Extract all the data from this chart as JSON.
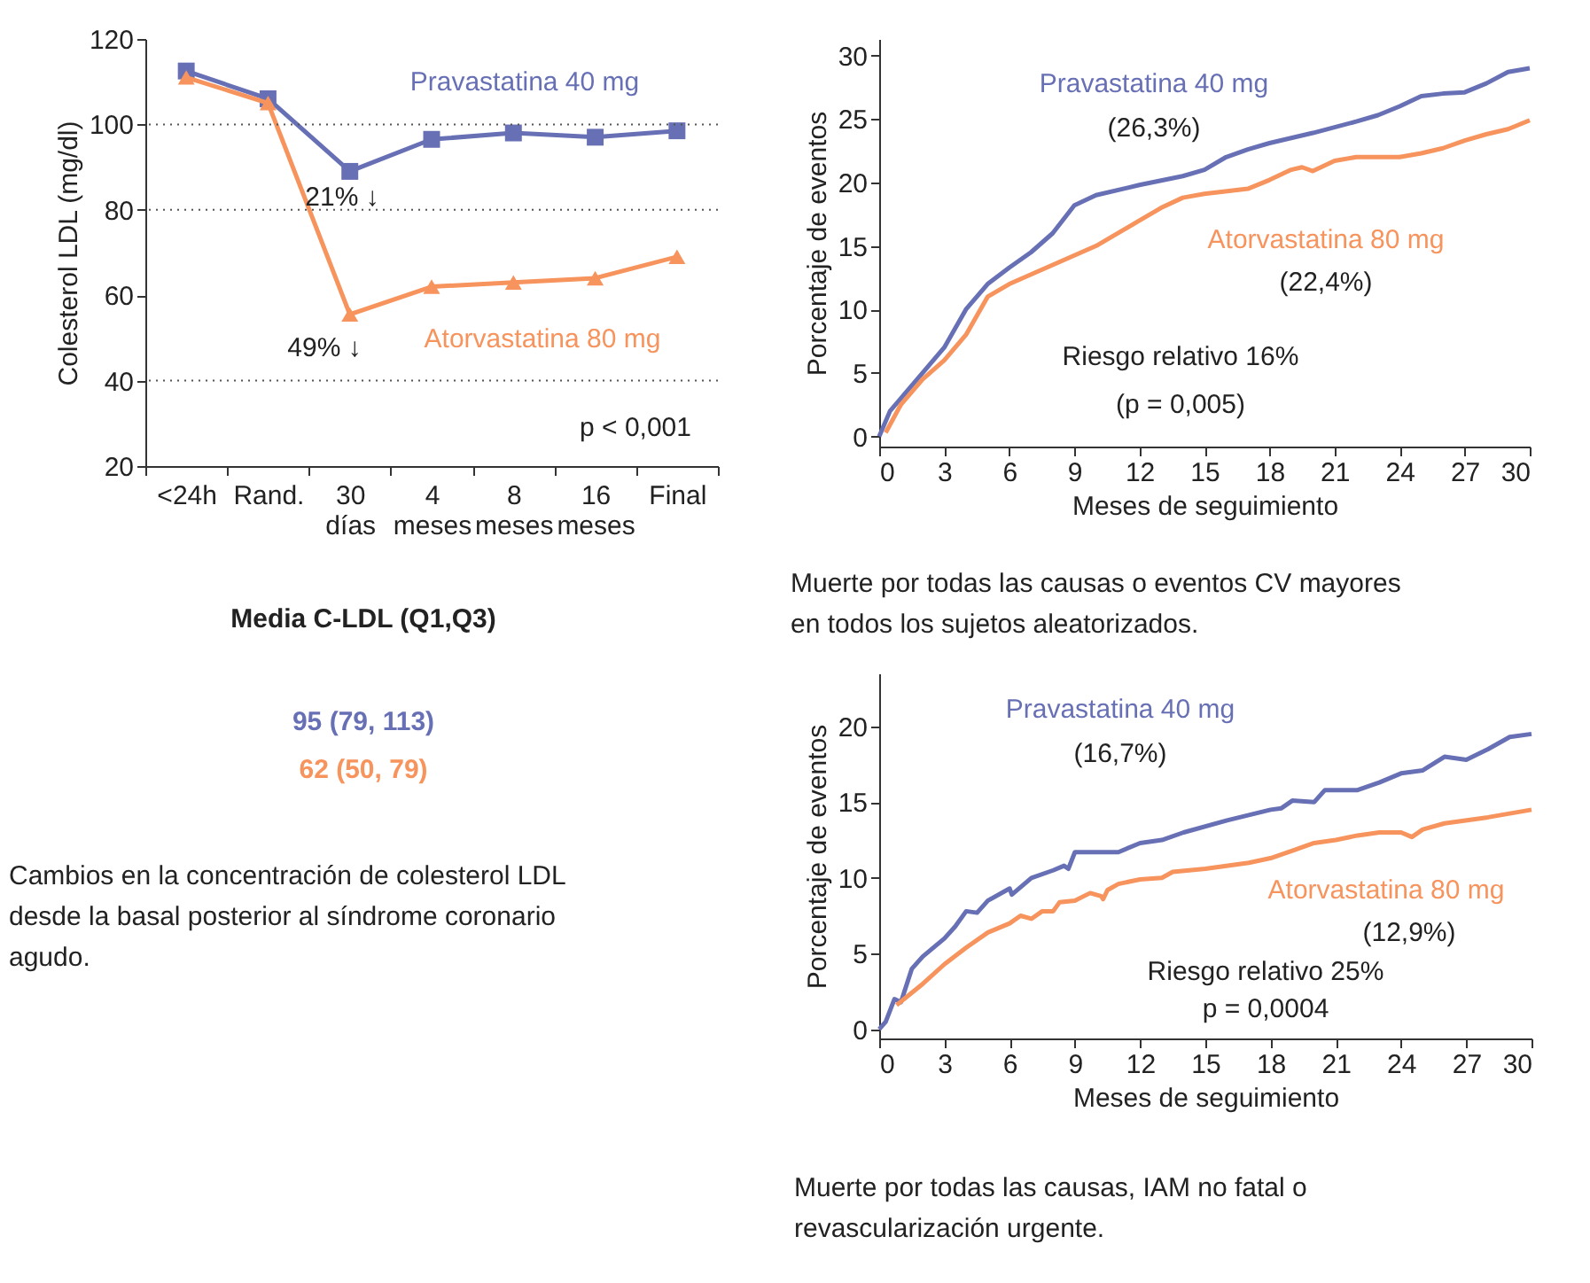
{
  "chart_data": [
    {
      "type": "line",
      "ylabel": "Colesterol LDL (mg/dl)",
      "categories": [
        "<24h",
        "Rand.",
        "30 días",
        "4 meses",
        "8 meses",
        "16 meses",
        "Final"
      ],
      "ylim": [
        20,
        120
      ],
      "yticks": [
        20,
        40,
        60,
        80,
        100,
        120
      ],
      "series": [
        {
          "name": "Pravastatina 40 mg",
          "color": "#6870b5",
          "marker": "square",
          "values": [
            112.5,
            106,
            89,
            96.5,
            98,
            97,
            98.5
          ]
        },
        {
          "name": "Atorvastatina 80 mg",
          "color": "#f7935c",
          "marker": "triangle",
          "values": [
            111,
            105,
            55.5,
            62,
            63,
            64,
            69
          ]
        }
      ],
      "ref_lines": [
        {
          "axis": "y",
          "value": 40,
          "line_style": "dotted",
          "color": "#555555"
        },
        {
          "axis": "y",
          "value": 80,
          "line_style": "dotted",
          "color": "#555555"
        },
        {
          "axis": "y",
          "value": 100,
          "line_style": "dotted",
          "color": "#555555"
        }
      ],
      "annotations": [
        "21% ↓",
        "49% ↓",
        "p < 0,001"
      ],
      "legend": false
    },
    {
      "type": "other",
      "title": "Media C-LDL (Q1,Q3)",
      "annotations": [
        "95 (79, 113)",
        "62 (50, 79)",
        "Cambios en la concentración de colesterol LDL desde la basal posterior al síndrome coronario agudo."
      ],
      "colors": [
        "#6870b5",
        "#f7935c",
        "#222222"
      ]
    },
    {
      "type": "line",
      "xlabel": "Meses de seguimiento",
      "ylabel": "Porcentaje de eventos",
      "xlim": [
        0,
        30
      ],
      "xticks": [
        0,
        3,
        6,
        9,
        12,
        15,
        18,
        21,
        24,
        27,
        30
      ],
      "ylim": [
        -0.8,
        31.3
      ],
      "yticks": [
        0,
        5,
        10,
        15,
        20,
        25,
        30
      ],
      "series": [
        {
          "name": "Pravastatina 40 mg",
          "color": "#6870b5",
          "x": [
            0,
            0.5,
            1,
            2,
            3,
            4,
            5,
            6,
            7,
            8,
            9,
            10,
            12,
            14,
            15,
            16,
            17,
            18,
            20,
            22,
            23,
            24,
            25,
            26,
            27,
            28,
            29,
            30
          ],
          "values": [
            0,
            2,
            3,
            5,
            7,
            10,
            12,
            13.3,
            14.5,
            16,
            18.2,
            19,
            19.8,
            20.5,
            21,
            22,
            22.6,
            23.1,
            23.9,
            24.8,
            25.3,
            26,
            26.8,
            27,
            27.1,
            27.8,
            28.7,
            29
          ]
        },
        {
          "name": "Atorvastatina 80 mg",
          "color": "#f7935c",
          "x": [
            0.3,
            1,
            2,
            3,
            4,
            5,
            6,
            8,
            10,
            12,
            13,
            14,
            15,
            17,
            18,
            19,
            19.5,
            20,
            21,
            22,
            24,
            25,
            26,
            27,
            28,
            29,
            30
          ],
          "values": [
            0.3,
            2.5,
            4.5,
            6,
            8,
            11,
            12,
            13.5,
            15,
            17,
            18,
            18.8,
            19.1,
            19.5,
            20.2,
            21,
            21.2,
            20.9,
            21.7,
            22,
            22,
            22.3,
            22.7,
            23.3,
            23.8,
            24.2,
            24.9
          ]
        }
      ],
      "annotations": [
        "(26,3%)",
        "(22,4%)",
        "Riesgo relativo 16%",
        "(p = 0,005)",
        "Muerte por todas las causas o eventos CV mayores en todos los sujetos aleatorizados."
      ],
      "marker": "none",
      "legend": false
    },
    {
      "type": "line",
      "xlabel": "Meses de seguimiento",
      "ylabel": "Porcentaje de eventos",
      "xlim": [
        0,
        30
      ],
      "xticks": [
        0,
        3,
        6,
        9,
        12,
        15,
        18,
        21,
        24,
        27,
        30
      ],
      "ylim": [
        -0.6,
        23.5
      ],
      "yticks": [
        0,
        5,
        10,
        15,
        20
      ],
      "series": [
        {
          "name": "Pravastatina 40 mg",
          "color": "#6870b5",
          "x": [
            0,
            0.3,
            0.7,
            1,
            1.5,
            2,
            3,
            3.5,
            4,
            4.5,
            5,
            6,
            6.1,
            7,
            8,
            8.5,
            8.7,
            9,
            11,
            12,
            13,
            14,
            16,
            18,
            18.5,
            19,
            20,
            20.5,
            22,
            23,
            24,
            25,
            26,
            27,
            28,
            29,
            30
          ],
          "values": [
            0,
            0.5,
            2,
            1.8,
            4,
            4.8,
            6,
            6.8,
            7.8,
            7.7,
            8.5,
            9.3,
            8.9,
            10,
            10.5,
            10.8,
            10.6,
            11.7,
            11.7,
            12.3,
            12.5,
            13,
            13.8,
            14.5,
            14.6,
            15.1,
            15,
            15.8,
            15.8,
            16.3,
            16.9,
            17.1,
            18,
            17.8,
            18.5,
            19.3,
            19.5
          ]
        },
        {
          "name": "Atorvastatina 80 mg",
          "color": "#f7935c",
          "x": [
            0.8,
            2,
            3,
            4,
            5,
            6,
            6.5,
            7,
            7.5,
            8,
            8.3,
            9,
            9.7,
            10.2,
            10.3,
            10.5,
            11,
            12,
            13,
            13.5,
            15,
            17,
            18,
            19,
            20,
            21,
            22,
            23,
            24,
            24.5,
            25,
            26,
            28,
            30
          ],
          "values": [
            1.6,
            3,
            4.3,
            5.4,
            6.4,
            7,
            7.5,
            7.3,
            7.8,
            7.8,
            8.4,
            8.5,
            9,
            8.8,
            8.6,
            9.2,
            9.6,
            9.9,
            10,
            10.4,
            10.6,
            11,
            11.3,
            11.8,
            12.3,
            12.5,
            12.8,
            13,
            13,
            12.7,
            13.2,
            13.6,
            14,
            14.5
          ]
        }
      ],
      "annotations": [
        "(16,7%)",
        "(12,9%)",
        "Riesgo relativo 25%",
        "p = 0,0004",
        "Muerte por todas las causas, IAM no fatal o revascularización urgente."
      ],
      "marker": "none",
      "legend": false
    }
  ]
}
